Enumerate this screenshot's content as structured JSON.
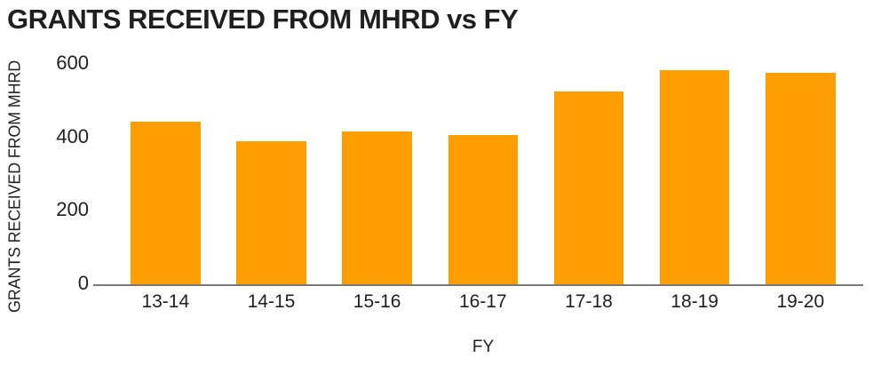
{
  "chart_data": {
    "type": "bar",
    "title": "GRANTS RECEIVED FROM MHRD vs FY",
    "xlabel": "FY",
    "ylabel": "GRANTS RECEIVED FROM MHRD",
    "categories": [
      "13-14",
      "14-15",
      "15-16",
      "16-17",
      "17-18",
      "18-19",
      "19-20"
    ],
    "values": [
      443,
      390,
      416,
      406,
      525,
      582,
      577
    ],
    "ylim": [
      0,
      600
    ],
    "yticks": [
      0,
      200,
      400,
      600
    ],
    "bar_color": "#FF9E01",
    "axis_line_color": "#7a7a7a",
    "text_color": "#1f1f1f",
    "grid": false,
    "legend": false
  }
}
